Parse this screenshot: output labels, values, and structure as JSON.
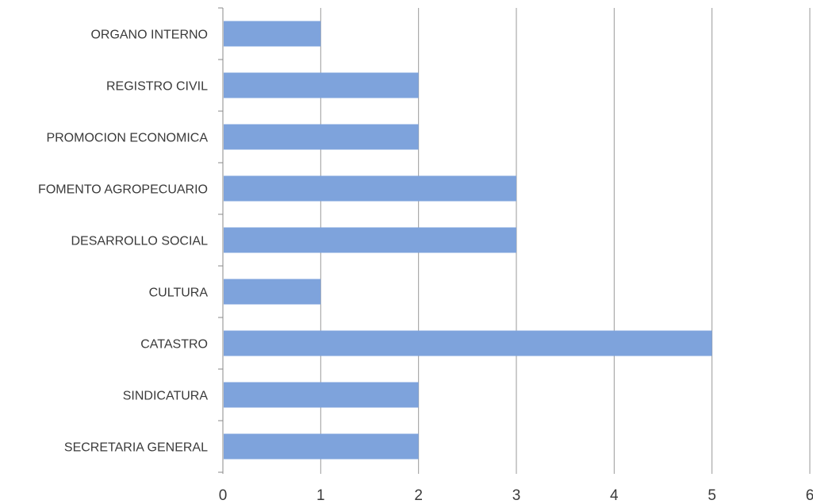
{
  "chart_data": {
    "type": "bar",
    "orientation": "horizontal",
    "categories": [
      "ORGANO INTERNO",
      "REGISTRO CIVIL",
      "PROMOCION ECONOMICA",
      "FOMENTO AGROPECUARIO",
      "DESARROLLO SOCIAL",
      "CULTURA",
      "CATASTRO",
      "SINDICATURA",
      "SECRETARIA GENERAL"
    ],
    "values": [
      1,
      2,
      2,
      3,
      3,
      1,
      5,
      2,
      2
    ],
    "xlim": [
      0,
      6
    ],
    "x_ticks": [
      "0",
      "1",
      "2",
      "3",
      "4",
      "5",
      "6"
    ],
    "grid": "vertical",
    "colors": {
      "bar": "#7ea3dc",
      "grid": "#9a9a9a",
      "axis": "#8a8a8a",
      "text": "#3a3a3a"
    }
  }
}
